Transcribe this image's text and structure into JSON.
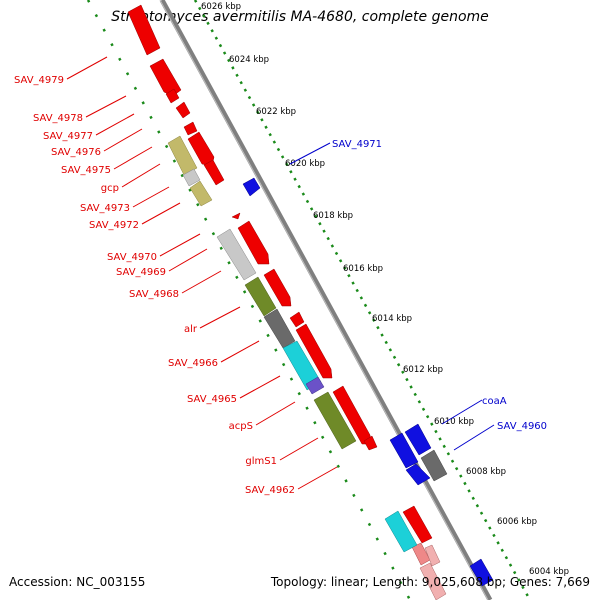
{
  "title": "Streptomyces avermitilis MA-4680, complete genome",
  "footer": {
    "accession": "Accession: NC_003155",
    "summary": "Topology: linear; Length: 9,025,608 bp; Genes: 7,669"
  },
  "colors": {
    "axis": "#7f7f7f",
    "tick_dots": "#1a8a1a",
    "label_red": "#e00000",
    "label_blue": "#0000cc"
  },
  "scale_labels": [
    "6026 kbp",
    "6024 kbp",
    "6022 kbp",
    "6020 kbp",
    "6018 kbp",
    "6016 kbp",
    "6014 kbp",
    "6012 kbp",
    "6010 kbp",
    "6008 kbp",
    "6006 kbp",
    "6004 kbp"
  ],
  "genes_left": [
    {
      "label": "SAV_4979"
    },
    {
      "label": "SAV_4978"
    },
    {
      "label": "SAV_4977"
    },
    {
      "label": "SAV_4976"
    },
    {
      "label": "SAV_4975"
    },
    {
      "label": "gcp"
    },
    {
      "label": "SAV_4973"
    },
    {
      "label": "SAV_4972"
    },
    {
      "label": "SAV_4970"
    },
    {
      "label": "SAV_4969"
    },
    {
      "label": "SAV_4968"
    },
    {
      "label": "alr"
    },
    {
      "label": "SAV_4966"
    },
    {
      "label": "SAV_4965"
    },
    {
      "label": "acpS"
    },
    {
      "label": "glmS1"
    },
    {
      "label": "SAV_4962"
    }
  ],
  "genes_right": [
    {
      "label": "SAV_4971"
    },
    {
      "label": "coaA"
    },
    {
      "label": "SAV_4960"
    }
  ]
}
